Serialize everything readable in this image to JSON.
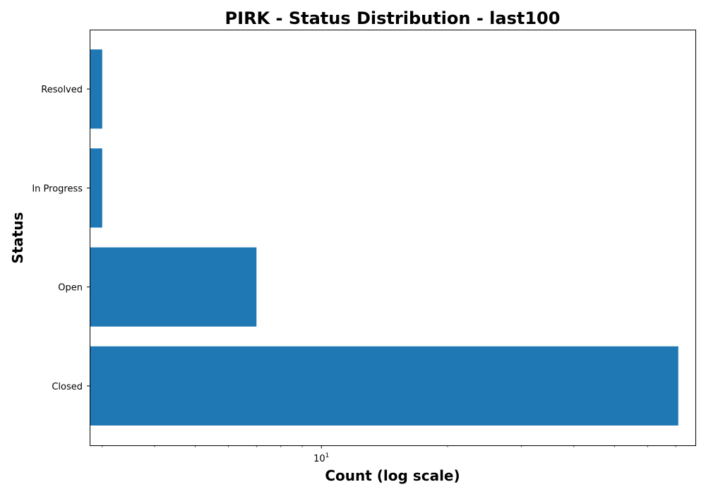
{
  "chart_data": {
    "type": "bar",
    "orientation": "horizontal",
    "title": "PIRK - Status Distribution - last100",
    "xlabel": "Count (log scale)",
    "ylabel": "Status",
    "xscale": "log",
    "xlim": [
      2.8,
      78
    ],
    "x_tick_labels": [
      {
        "base": "10",
        "exponent": "1",
        "value": 10
      }
    ],
    "x_minor_ticks": [
      3,
      4,
      5,
      6,
      7,
      8,
      9,
      20,
      30,
      40,
      50,
      60,
      70
    ],
    "categories": [
      "Closed",
      "Open",
      "In Progress",
      "Resolved"
    ],
    "values": [
      71,
      7,
      3,
      3
    ],
    "bar_color": "#1f77b4",
    "grid": false,
    "legend": "none"
  }
}
